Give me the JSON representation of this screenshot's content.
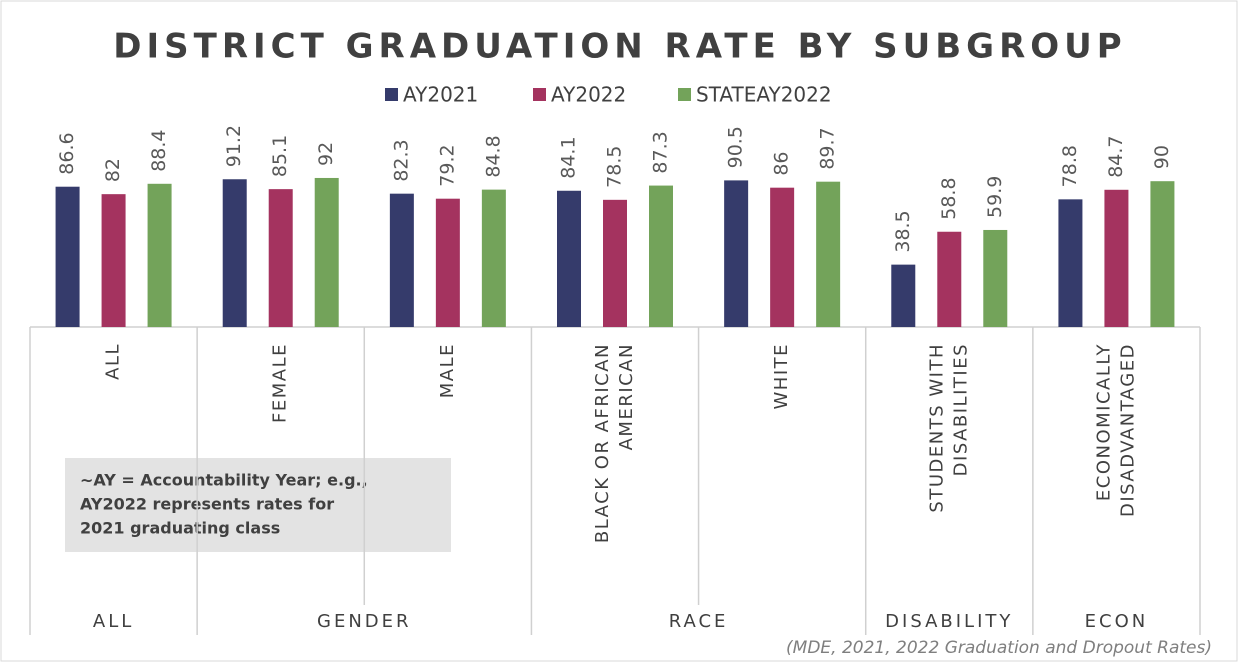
{
  "chart_data": {
    "type": "bar",
    "title": "DISTRICT GRADUATION RATE BY SUBGROUP",
    "categories": [
      [
        "ALL"
      ],
      [
        "FEMALE"
      ],
      [
        "MALE"
      ],
      [
        "BLACK OR AFRICAN",
        "AMERICAN"
      ],
      [
        "WHITE"
      ],
      [
        "STUDENTS WITH",
        "DISABILITIES"
      ],
      [
        "ECONOMICALLY",
        "DISADVANTAGED"
      ]
    ],
    "groups": [
      "ALL",
      "GENDER",
      "RACE",
      "DISABILITY",
      "ECON"
    ],
    "series": [
      {
        "name": "AY2021",
        "color": "#353b6b",
        "values": [
          86.6,
          91.2,
          82.3,
          84.1,
          90.5,
          38.5,
          78.8
        ]
      },
      {
        "name": "AY2022",
        "color": "#a4335f",
        "values": [
          82,
          85.1,
          79.2,
          78.5,
          86,
          58.8,
          84.7
        ]
      },
      {
        "name": "STATEAY2022",
        "color": "#73a35a",
        "values": [
          88.4,
          92,
          84.8,
          87.3,
          89.7,
          59.9,
          90
        ]
      }
    ],
    "ylim": [
      0,
      100
    ],
    "annotation": [
      "~AY = Accountability Year; e.g.,",
      "AY2022 represents rates for",
      "2021 graduating class"
    ],
    "source": "(MDE,   2021, 2022 Graduation and Dropout Rates)"
  }
}
